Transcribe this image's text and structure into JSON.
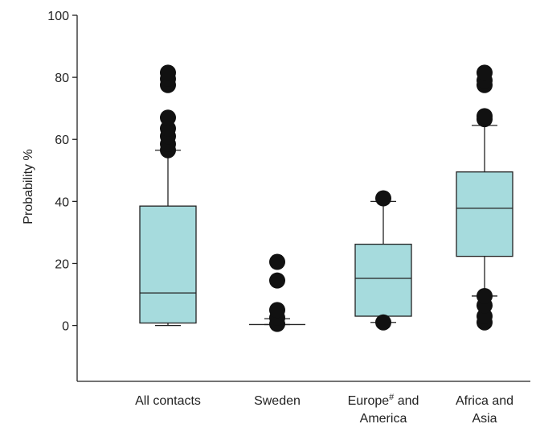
{
  "chart_data": {
    "type": "boxplot",
    "ylabel": "Probability %",
    "ylim": [
      -18,
      100
    ],
    "yticks": [
      0,
      20,
      40,
      60,
      80,
      100
    ],
    "grid": false,
    "box_color": "#a6dbdd",
    "categories": [
      {
        "lines": [
          "All contacts"
        ],
        "label": "All contacts",
        "whisker_low": 0,
        "q1": 0.8,
        "median": 10.5,
        "q3": 38.5,
        "whisker_high": 56.5,
        "outliers": [
          56.5,
          58.5,
          61,
          63.5,
          67,
          77.5,
          79.5,
          81.5
        ]
      },
      {
        "lines": [
          "Sweden"
        ],
        "label": "Sweden",
        "whisker_low": 0.3,
        "q1": 0.3,
        "median": 0.3,
        "q3": 0.3,
        "whisker_high": 2.2,
        "outliers": [
          0.5,
          2.5,
          5,
          14.5,
          20.5
        ]
      },
      {
        "lines": [
          "Europe# and",
          "America"
        ],
        "label": "Europe# and America",
        "whisker_low": 1,
        "q1": 3,
        "median": 15.2,
        "q3": 26.2,
        "whisker_high": 40,
        "outliers": [
          1,
          41
        ]
      },
      {
        "lines": [
          "Africa and",
          "Asia"
        ],
        "label": "Africa and Asia",
        "whisker_low": 9.5,
        "q1": 22.3,
        "median": 37.8,
        "q3": 49.5,
        "whisker_high": 64.5,
        "outliers": [
          1,
          3,
          6.5,
          9.5,
          66.5,
          67.5,
          77.5,
          79,
          81.5
        ]
      }
    ]
  }
}
